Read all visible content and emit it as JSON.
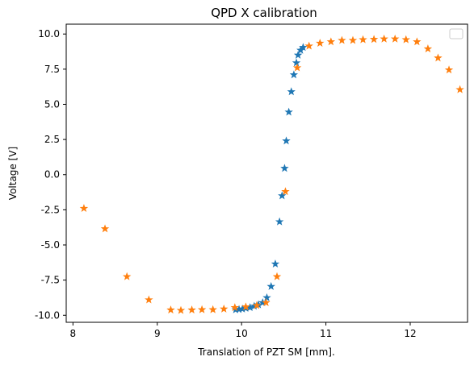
{
  "chart_data": {
    "type": "scatter",
    "title": "QPD X calibration",
    "xlabel": "Translation of PZT SM [mm].",
    "ylabel": "Voltage [V]",
    "xlim": [
      7.92,
      12.68
    ],
    "ylim": [
      -10.5,
      10.7
    ],
    "xticks": [
      8,
      9,
      10,
      11,
      12
    ],
    "yticks": [
      -10.0,
      -7.5,
      -5.0,
      -2.5,
      0.0,
      2.5,
      5.0,
      7.5,
      10.0
    ],
    "grid": false,
    "legend": {
      "placement": "top-right",
      "entries": []
    },
    "series": [
      {
        "color": "#1f77b4",
        "marker": "star",
        "points": [
          [
            9.93,
            -9.6
          ],
          [
            9.97,
            -9.58
          ],
          [
            10.01,
            -9.55
          ],
          [
            10.05,
            -9.5
          ],
          [
            10.1,
            -9.45
          ],
          [
            10.15,
            -9.35
          ],
          [
            10.2,
            -9.25
          ],
          [
            10.25,
            -9.1
          ],
          [
            10.3,
            -8.75
          ],
          [
            10.35,
            -7.95
          ],
          [
            10.4,
            -6.35
          ],
          [
            10.45,
            -3.35
          ],
          [
            10.48,
            -1.5
          ],
          [
            10.51,
            0.45
          ],
          [
            10.53,
            2.4
          ],
          [
            10.56,
            4.45
          ],
          [
            10.59,
            5.9
          ],
          [
            10.62,
            7.1
          ],
          [
            10.65,
            7.95
          ],
          [
            10.67,
            8.5
          ],
          [
            10.7,
            8.85
          ],
          [
            10.73,
            9.05
          ]
        ]
      },
      {
        "color": "#ff7f0e",
        "marker": "star",
        "points": [
          [
            8.13,
            -2.4
          ],
          [
            8.38,
            -3.85
          ],
          [
            8.64,
            -7.25
          ],
          [
            8.9,
            -8.9
          ],
          [
            9.16,
            -9.62
          ],
          [
            9.28,
            -9.65
          ],
          [
            9.41,
            -9.62
          ],
          [
            9.53,
            -9.6
          ],
          [
            9.66,
            -9.6
          ],
          [
            9.79,
            -9.55
          ],
          [
            9.92,
            -9.45
          ],
          [
            10.05,
            -9.4
          ],
          [
            10.18,
            -9.3
          ],
          [
            10.29,
            -9.1
          ],
          [
            10.42,
            -7.25
          ],
          [
            10.52,
            -1.2
          ],
          [
            10.66,
            7.6
          ],
          [
            10.8,
            9.15
          ],
          [
            10.93,
            9.35
          ],
          [
            11.06,
            9.45
          ],
          [
            11.19,
            9.55
          ],
          [
            11.32,
            9.55
          ],
          [
            11.44,
            9.6
          ],
          [
            11.57,
            9.62
          ],
          [
            11.69,
            9.65
          ],
          [
            11.82,
            9.65
          ],
          [
            11.95,
            9.6
          ],
          [
            12.08,
            9.45
          ],
          [
            12.21,
            8.95
          ],
          [
            12.33,
            8.3
          ],
          [
            12.46,
            7.45
          ],
          [
            12.59,
            6.05
          ]
        ]
      }
    ]
  }
}
